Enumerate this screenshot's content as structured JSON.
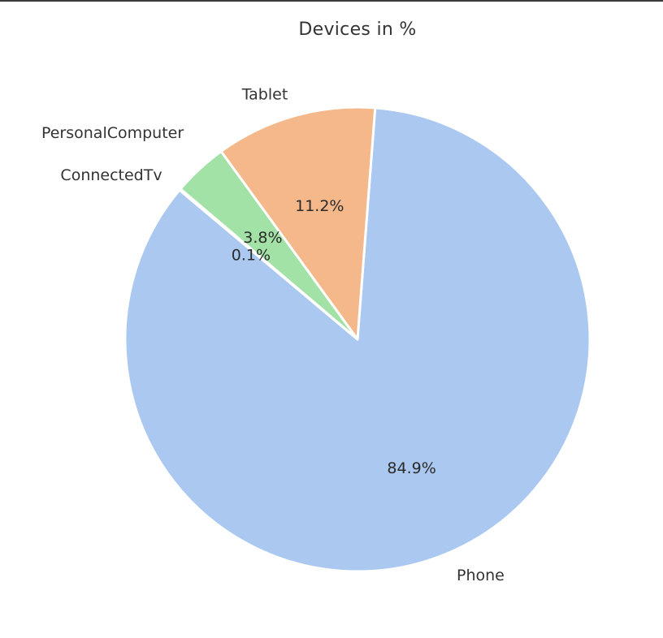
{
  "chart_data": {
    "type": "pie",
    "title": "Devices in %",
    "slices": [
      {
        "label": "Phone",
        "pct_text": "84.9%",
        "value": 84.9,
        "color": "#aac8f0"
      },
      {
        "label": "Tablet",
        "pct_text": "11.2%",
        "value": 11.2,
        "color": "#f4b88a"
      },
      {
        "label": "PersonalComputer",
        "pct_text": "3.8%",
        "value": 3.8,
        "color": "#a3e2a6"
      },
      {
        "label": "ConnectedTv",
        "pct_text": "0.1%",
        "value": 0.1,
        "color": "#ff9f9b"
      }
    ],
    "start_angle_deg": 140,
    "direction": "counterclockwise",
    "legend": "none"
  }
}
